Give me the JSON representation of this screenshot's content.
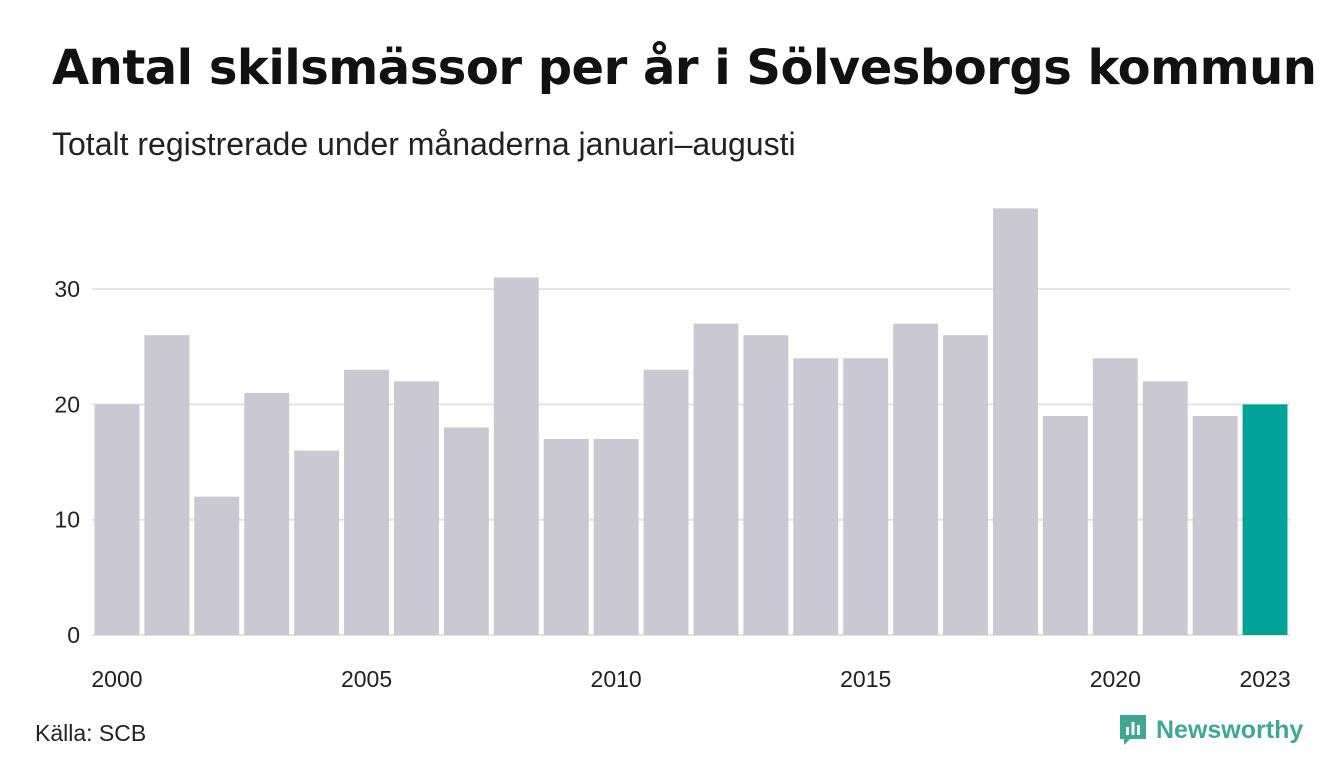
{
  "title": "Antal skilsmässor per år i Sölvesborgs kommun",
  "subtitle": "Totalt registrerade under månaderna januari–augusti",
  "source": "Källa: SCB",
  "brand": {
    "name": "Newsworthy",
    "icon": "newsworthy-logo-icon",
    "color": "#3fa796"
  },
  "colors": {
    "bar": "#c9c8d3",
    "highlight": "#00a398",
    "grid": "#e3e3e3"
  },
  "chart_data": {
    "type": "bar",
    "categories": [
      "2000",
      "2001",
      "2002",
      "2003",
      "2004",
      "2005",
      "2006",
      "2007",
      "2008",
      "2009",
      "2010",
      "2011",
      "2012",
      "2013",
      "2014",
      "2015",
      "2016",
      "2017",
      "2018",
      "2019",
      "2020",
      "2021",
      "2022",
      "2023"
    ],
    "values": [
      20,
      26,
      12,
      21,
      16,
      23,
      22,
      18,
      31,
      17,
      17,
      23,
      27,
      26,
      24,
      24,
      27,
      26,
      37,
      19,
      24,
      22,
      19,
      20
    ],
    "highlight_category": "2023",
    "x_tick_labels": [
      "2000",
      "2005",
      "2010",
      "2015",
      "2020",
      "2023"
    ],
    "y_ticks": [
      0,
      10,
      20,
      30
    ],
    "ylim": [
      0,
      37
    ],
    "grid": true,
    "xlabel": "",
    "ylabel": ""
  }
}
